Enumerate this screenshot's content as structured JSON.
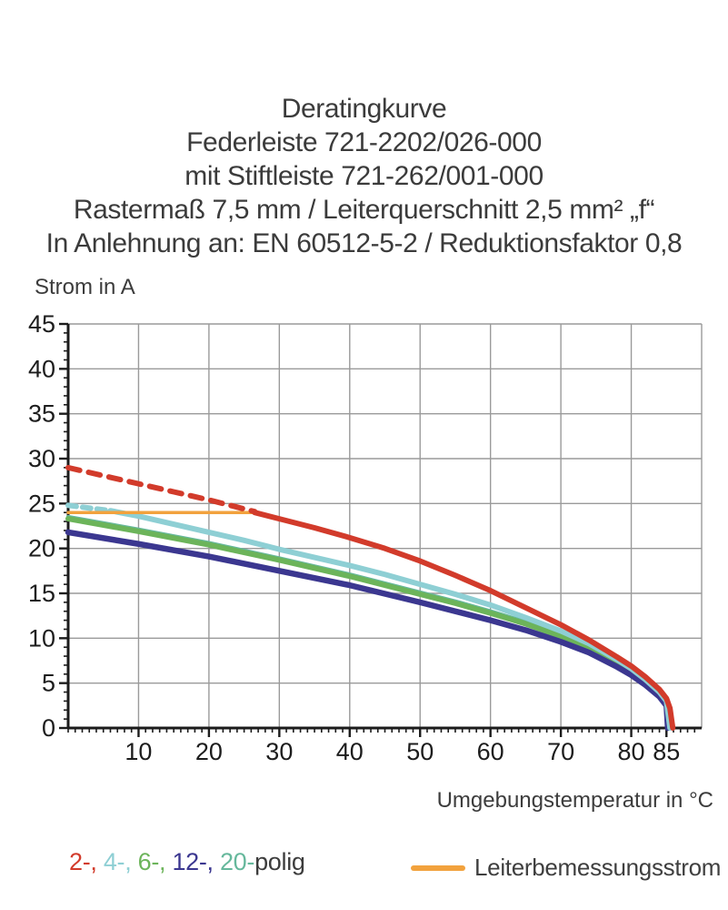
{
  "header": {
    "lines": [
      "Deratingkurve",
      "Federleiste 721-2202/026-000",
      "mit Stiftleiste 721-262/001-000",
      "Rastermaß 7,5 mm / Leiterquerschnitt 2,5 mm² „f“",
      "In Anlehnung an: EN 60512-5-2 / Reduktionsfaktor 0,8"
    ]
  },
  "legend": {
    "poles": [
      {
        "text": "2-, ",
        "color": "#d23b2b"
      },
      {
        "text": "4-, ",
        "color": "#8ecfd4"
      },
      {
        "text": "6-, ",
        "color": "#6cb45a"
      },
      {
        "text": "12-, ",
        "color": "#3b3790"
      },
      {
        "text": "20-",
        "color": "#66b89c"
      },
      {
        "text": "polig",
        "color": "#3c3c3c"
      }
    ],
    "conductor_current_label": "Leiterbemessungsstrom",
    "conductor_current_color": "#f2a23d"
  },
  "chart_data": {
    "type": "line",
    "title": "Deratingkurve",
    "xlabel": "Umgebungstemperatur in °C",
    "ylabel": "Strom in A",
    "xlim": [
      0,
      90
    ],
    "ylim": [
      0,
      45
    ],
    "grid": true,
    "legend_position": "bottom",
    "x_gridlines": [
      10,
      20,
      30,
      40,
      50,
      60,
      70,
      80,
      90
    ],
    "y_gridlines": [
      5,
      10,
      15,
      20,
      25,
      30,
      35,
      40,
      45
    ],
    "x_tick_labels": [
      10,
      20,
      30,
      40,
      50,
      60,
      70,
      80,
      85
    ],
    "y_tick_labels": [
      0,
      5,
      10,
      15,
      20,
      25,
      30,
      35,
      40,
      45
    ],
    "x_minor_step": 1,
    "y_minor_step": 1,
    "colors": {
      "grid": "#9a9a9a",
      "axis": "#1c1c1c",
      "tick_text": "#1d1d1d"
    },
    "series": [
      {
        "name": "20-polig",
        "color": "#66b89c",
        "width": 4.5,
        "segments": [
          {
            "points": [
              [
                0,
                23.5
              ],
              [
                10,
                22.1
              ],
              [
                20,
                20.6
              ],
              [
                30,
                18.9
              ],
              [
                40,
                17.1
              ],
              [
                50,
                15.1
              ],
              [
                55,
                14.1
              ],
              [
                60,
                13.0
              ],
              [
                65,
                11.8
              ],
              [
                70,
                10.4
              ],
              [
                74,
                9.1
              ],
              [
                78,
                7.4
              ],
              [
                80,
                6.4
              ],
              [
                82,
                5.3
              ],
              [
                84,
                3.9
              ],
              [
                85,
                2.9
              ],
              [
                85.4,
                0
              ]
            ]
          }
        ]
      },
      {
        "name": "6-polig",
        "color": "#6cb45a",
        "width": 6,
        "segments": [
          {
            "points": [
              [
                0,
                23.3
              ],
              [
                10,
                21.9
              ],
              [
                20,
                20.4
              ],
              [
                30,
                18.7
              ],
              [
                40,
                16.9
              ],
              [
                50,
                14.9
              ],
              [
                55,
                13.9
              ],
              [
                60,
                12.8
              ],
              [
                65,
                11.6
              ],
              [
                70,
                10.2
              ],
              [
                74,
                8.9
              ],
              [
                78,
                7.2
              ],
              [
                80,
                6.2
              ],
              [
                82,
                5.1
              ],
              [
                84,
                3.7
              ],
              [
                85,
                2.7
              ],
              [
                85.3,
                0
              ]
            ]
          }
        ]
      },
      {
        "name": "12-polig",
        "color": "#3b3790",
        "width": 6.5,
        "segments": [
          {
            "points": [
              [
                0,
                21.8
              ],
              [
                10,
                20.5
              ],
              [
                20,
                19.1
              ],
              [
                30,
                17.5
              ],
              [
                40,
                15.9
              ],
              [
                50,
                14.0
              ],
              [
                55,
                13.0
              ],
              [
                60,
                12.0
              ],
              [
                65,
                10.9
              ],
              [
                70,
                9.6
              ],
              [
                74,
                8.4
              ],
              [
                78,
                6.8
              ],
              [
                80,
                5.9
              ],
              [
                82,
                4.8
              ],
              [
                84,
                3.5
              ],
              [
                85,
                2.5
              ],
              [
                85.2,
                0
              ]
            ]
          }
        ]
      },
      {
        "name": "4-polig",
        "color": "#8ecfd4",
        "width": 6,
        "segments": [
          {
            "dash": "9 7",
            "points": [
              [
                0,
                24.8
              ],
              [
                6,
                24.2
              ]
            ]
          },
          {
            "points": [
              [
                6,
                24.2
              ],
              [
                10,
                23.6
              ],
              [
                15,
                22.7
              ],
              [
                20,
                21.8
              ],
              [
                25,
                20.9
              ],
              [
                30,
                19.9
              ],
              [
                35,
                19.0
              ],
              [
                40,
                18.1
              ],
              [
                45,
                17.1
              ],
              [
                50,
                16.0
              ],
              [
                55,
                14.9
              ],
              [
                60,
                13.7
              ],
              [
                65,
                12.3
              ],
              [
                70,
                10.8
              ],
              [
                74,
                9.4
              ],
              [
                78,
                7.6
              ],
              [
                80,
                6.6
              ],
              [
                82,
                5.4
              ],
              [
                84,
                4.0
              ],
              [
                85,
                3.0
              ],
              [
                85.5,
                0
              ]
            ]
          }
        ]
      },
      {
        "name": "Leiterbemessungsstrom",
        "color": "#f2a23d",
        "width": 3.5,
        "segments": [
          {
            "points": [
              [
                0,
                24
              ],
              [
                26.5,
                24
              ]
            ]
          }
        ]
      },
      {
        "name": "2-polig",
        "color": "#d23b2b",
        "width": 6,
        "segments": [
          {
            "dash": "13 10",
            "points": [
              [
                0,
                29
              ],
              [
                5,
                28.1
              ],
              [
                10,
                27.2
              ],
              [
                15,
                26.3
              ],
              [
                20,
                25.4
              ],
              [
                26.5,
                24.1
              ]
            ]
          },
          {
            "points": [
              [
                26.5,
                24.0
              ],
              [
                30,
                23.3
              ],
              [
                35,
                22.3
              ],
              [
                40,
                21.2
              ],
              [
                45,
                20.0
              ],
              [
                50,
                18.6
              ],
              [
                55,
                17.0
              ],
              [
                60,
                15.3
              ],
              [
                65,
                13.4
              ],
              [
                70,
                11.5
              ],
              [
                74,
                9.8
              ],
              [
                78,
                7.9
              ],
              [
                80,
                6.9
              ],
              [
                82,
                5.7
              ],
              [
                84,
                4.3
              ],
              [
                85,
                3.3
              ],
              [
                85.5,
                2.2
              ],
              [
                85.9,
                0
              ]
            ]
          }
        ]
      }
    ]
  }
}
